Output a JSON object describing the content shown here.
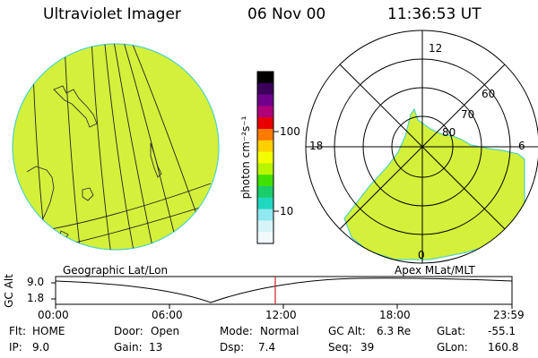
{
  "header": {
    "instrument": "Ultraviolet Imager",
    "date": "06 Nov 00",
    "time": "11:36:53 UT"
  },
  "colorbar": {
    "unit_label": "photon cm⁻²s⁻¹",
    "ticks": [
      "100",
      "10"
    ],
    "colors": [
      "#000000",
      "#3a005a",
      "#70008c",
      "#b0007a",
      "#e80000",
      "#ff7a00",
      "#ffd000",
      "#f3ff00",
      "#b8f500",
      "#40e000",
      "#1acd6a",
      "#20d8c0",
      "#90e8f0",
      "#d6f4f8",
      "#f2f9fc"
    ]
  },
  "left_panel": {
    "label": "Geographic Lat/Lon",
    "fill_color": "#d4f03a"
  },
  "right_panel": {
    "label": "Apex MLat/MLT",
    "mlt_labels": [
      "12",
      "18",
      "6",
      "0"
    ],
    "mlat_labels": [
      "60",
      "70",
      "80"
    ],
    "fill_color": "#d4f03a"
  },
  "timeline": {
    "axis_label": "GC Alt",
    "y_ticks": [
      "9.0",
      "1.8"
    ],
    "x_ticks": [
      "00:00",
      "06:00",
      "12:00",
      "18:00",
      "23:59"
    ],
    "current_marker_color": "#d02020"
  },
  "info": {
    "flt_label": "Flt:",
    "flt_value": "HOME",
    "ip_label": "IP:",
    "ip_value": "9.0",
    "door_label": "Door:",
    "door_value": "Open",
    "gain_label": "Gain:",
    "gain_value": "13",
    "mode_label": "Mode:",
    "mode_value": "Normal",
    "dsp_label": "Dsp:",
    "dsp_value": "7.4",
    "gcalt_label": "GC Alt:",
    "gcalt_value": "6.3 Re",
    "seq_label": "Seq:",
    "seq_value": "39",
    "glat_label": "GLat:",
    "glat_value": "-55.1",
    "glon_label": "GLon:",
    "glon_value": "160.8"
  }
}
